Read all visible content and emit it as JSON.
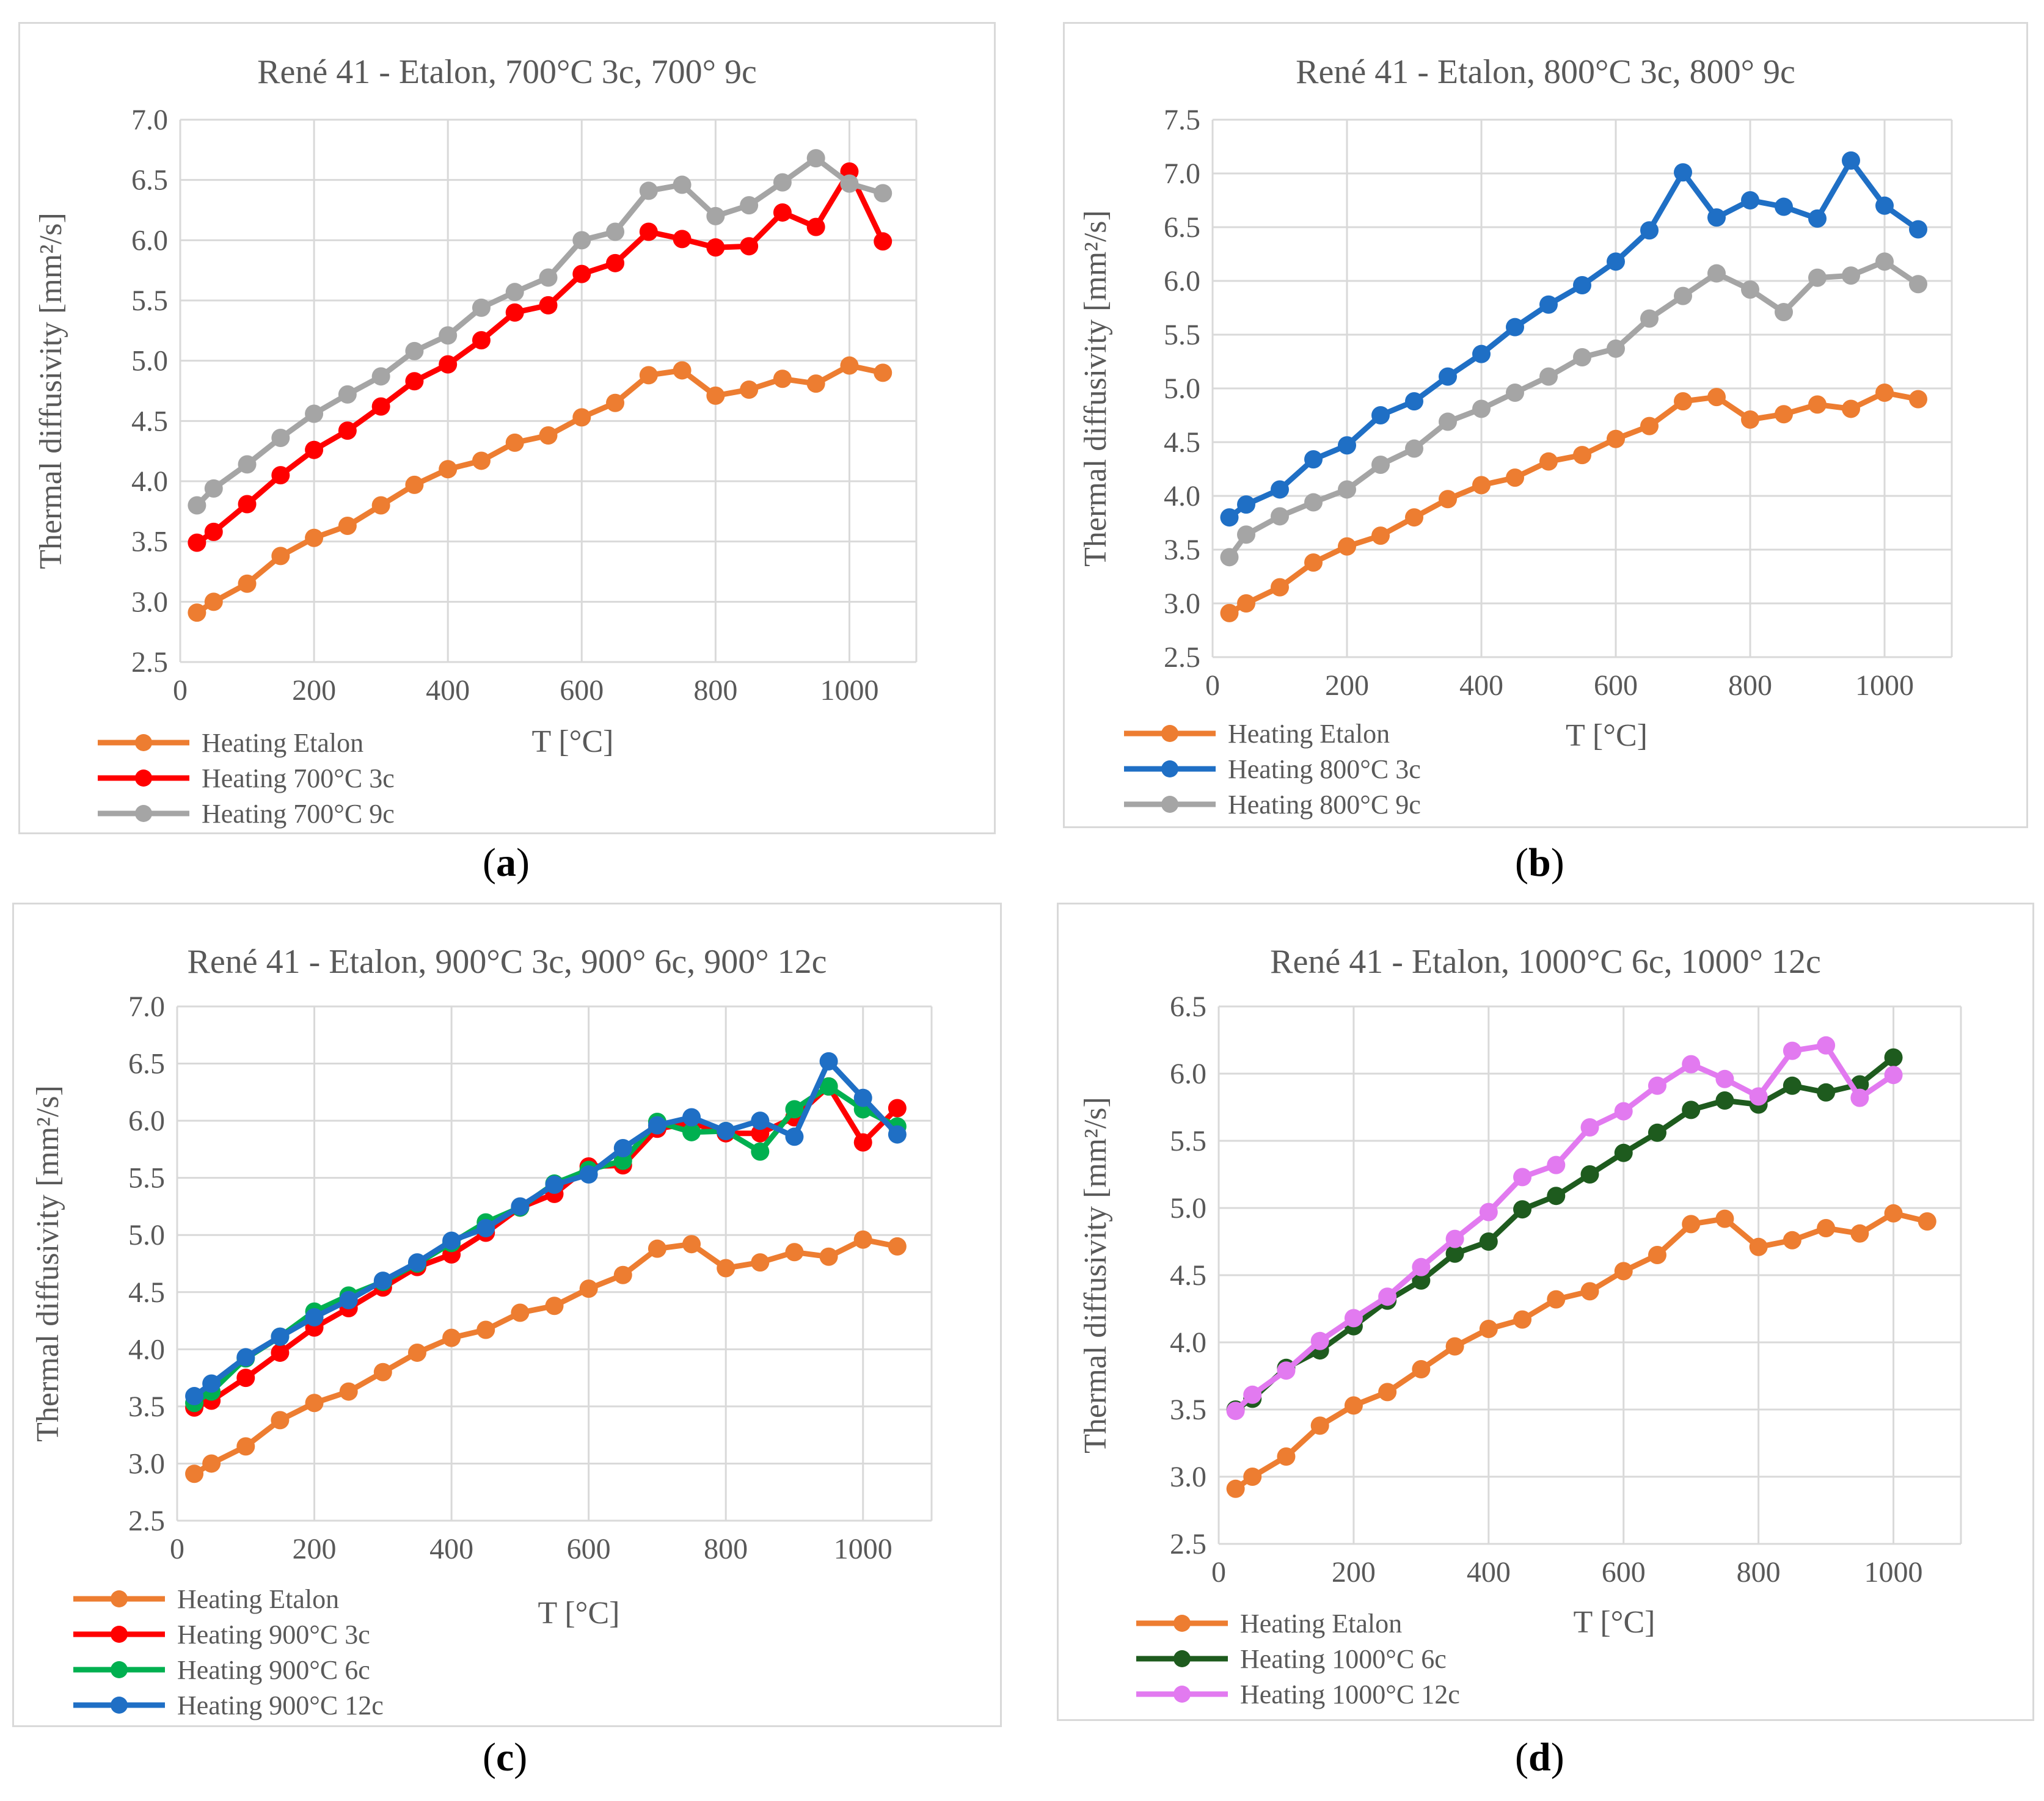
{
  "panels": [
    {
      "caption": "(a)",
      "caption_letter": "a",
      "chart_data": {
        "type": "line",
        "title": "René 41 - Etalon, 700°C 3c, 700° 9c",
        "xlabel": "T [°C]",
        "ylabel": "Thermal diffusivity  [mm²/s]",
        "xlim": [
          0,
          1100
        ],
        "ylim": [
          2.5,
          7.0
        ],
        "xticks": [
          0,
          200,
          400,
          600,
          800,
          1000
        ],
        "yticks": [
          "2.5",
          "3.0",
          "3.5",
          "4.0",
          "4.5",
          "5.0",
          "5.5",
          "6.0",
          "6.5",
          "7.0"
        ],
        "x": [
          25,
          50,
          100,
          150,
          200,
          250,
          300,
          350,
          400,
          450,
          500,
          550,
          600,
          650,
          700,
          750,
          800,
          850,
          900,
          950,
          1000,
          1050
        ],
        "series": [
          {
            "name": "Heating Etalon",
            "color": "#ED7D31",
            "values": [
              2.91,
              3.0,
              3.15,
              3.38,
              3.53,
              3.63,
              3.8,
              3.97,
              4.1,
              4.17,
              4.32,
              4.38,
              4.53,
              4.65,
              4.88,
              4.92,
              4.71,
              4.76,
              4.85,
              4.81,
              4.96,
              4.9
            ]
          },
          {
            "name": "Heating 700°C 3c",
            "color": "#FF0000",
            "values": [
              3.49,
              3.58,
              3.81,
              4.05,
              4.26,
              4.42,
              4.62,
              4.83,
              4.97,
              5.17,
              5.4,
              5.46,
              5.72,
              5.81,
              6.07,
              6.01,
              5.94,
              5.95,
              6.23,
              6.11,
              6.57,
              5.99
            ]
          },
          {
            "name": "Heating 700°C 9c",
            "color": "#A5A5A5",
            "values": [
              3.8,
              3.94,
              4.14,
              4.36,
              4.56,
              4.72,
              4.87,
              5.08,
              5.21,
              5.44,
              5.57,
              5.69,
              6.0,
              6.07,
              6.41,
              6.46,
              6.2,
              6.29,
              6.48,
              6.68,
              6.47,
              6.39
            ]
          }
        ]
      }
    },
    {
      "caption": "(b)",
      "caption_letter": "b",
      "chart_data": {
        "type": "line",
        "title": "René 41 - Etalon, 800°C 3c, 800° 9c",
        "xlabel": "T [°C]",
        "ylabel": "Thermal diffusivity  [mm²/s]",
        "xlim": [
          0,
          1100
        ],
        "ylim": [
          2.5,
          7.5
        ],
        "xticks": [
          0,
          200,
          400,
          600,
          800,
          1000
        ],
        "yticks": [
          "2.5",
          "3.0",
          "3.5",
          "4.0",
          "4.5",
          "5.0",
          "5.5",
          "6.0",
          "6.5",
          "7.0",
          "7.5"
        ],
        "x": [
          25,
          50,
          100,
          150,
          200,
          250,
          300,
          350,
          400,
          450,
          500,
          550,
          600,
          650,
          700,
          750,
          800,
          850,
          900,
          950,
          1000,
          1050
        ],
        "series": [
          {
            "name": "Heating Etalon",
            "color": "#ED7D31",
            "values": [
              2.91,
              3.0,
              3.15,
              3.38,
              3.53,
              3.63,
              3.8,
              3.97,
              4.1,
              4.17,
              4.32,
              4.38,
              4.53,
              4.65,
              4.88,
              4.92,
              4.71,
              4.76,
              4.85,
              4.81,
              4.96,
              4.9
            ]
          },
          {
            "name": "Heating 800°C 3c",
            "color": "#1F6FC5",
            "values": [
              3.8,
              3.92,
              4.06,
              4.34,
              4.47,
              4.75,
              4.88,
              5.11,
              5.32,
              5.57,
              5.78,
              5.96,
              6.18,
              6.47,
              7.01,
              6.59,
              6.75,
              6.69,
              6.58,
              7.12,
              6.7,
              6.48
            ]
          },
          {
            "name": "Heating 800°C 9c",
            "color": "#A5A5A5",
            "values": [
              3.43,
              3.64,
              3.81,
              3.94,
              4.06,
              4.29,
              4.44,
              4.69,
              4.81,
              4.96,
              5.11,
              5.29,
              5.37,
              5.65,
              5.86,
              6.07,
              5.92,
              5.71,
              6.03,
              6.05,
              6.18,
              5.97
            ]
          }
        ]
      }
    },
    {
      "caption": "(c)",
      "caption_letter": "c",
      "chart_data": {
        "type": "line",
        "title": "René 41 - Etalon, 900°C 3c, 900° 6c, 900° 12c",
        "xlabel": "T [°C]",
        "ylabel": "Thermal diffusivity  [mm²/s]",
        "xlim": [
          0,
          1100
        ],
        "ylim": [
          2.5,
          7.0
        ],
        "xticks": [
          0,
          200,
          400,
          600,
          800,
          1000
        ],
        "yticks": [
          "2.5",
          "3.0",
          "3.5",
          "4.0",
          "4.5",
          "5.0",
          "5.5",
          "6.0",
          "6.5",
          "7.0"
        ],
        "x": [
          25,
          50,
          100,
          150,
          200,
          250,
          300,
          350,
          400,
          450,
          500,
          550,
          600,
          650,
          700,
          750,
          800,
          850,
          900,
          950,
          1000,
          1050
        ],
        "series": [
          {
            "name": "Heating Etalon",
            "color": "#ED7D31",
            "values": [
              2.91,
              3.0,
              3.15,
              3.38,
              3.53,
              3.63,
              3.8,
              3.97,
              4.1,
              4.17,
              4.32,
              4.38,
              4.53,
              4.65,
              4.88,
              4.92,
              4.71,
              4.76,
              4.85,
              4.81,
              4.96,
              4.9
            ]
          },
          {
            "name": "Heating 900°C 3c",
            "color": "#FF0000",
            "values": [
              3.49,
              3.55,
              3.75,
              3.97,
              4.19,
              4.36,
              4.54,
              4.72,
              4.83,
              5.02,
              5.24,
              5.36,
              5.6,
              5.61,
              5.93,
              5.98,
              5.89,
              5.89,
              6.03,
              6.3,
              5.81,
              6.11
            ]
          },
          {
            "name": "Heating 900°C 6c",
            "color": "#00B050",
            "values": [
              3.53,
              3.63,
              3.92,
              4.11,
              4.33,
              4.47,
              4.59,
              4.75,
              4.93,
              5.11,
              5.24,
              5.45,
              5.57,
              5.65,
              5.99,
              5.9,
              5.91,
              5.73,
              6.1,
              6.3,
              6.1,
              5.95
            ]
          },
          {
            "name": "Heating 900°C 12c",
            "color": "#1F6FC5",
            "values": [
              3.59,
              3.7,
              3.93,
              4.11,
              4.28,
              4.43,
              4.6,
              4.76,
              4.95,
              5.06,
              5.25,
              5.44,
              5.53,
              5.76,
              5.96,
              6.03,
              5.91,
              6.0,
              5.86,
              6.52,
              6.2,
              5.88
            ]
          }
        ]
      }
    },
    {
      "caption": "(d)",
      "caption_letter": "d",
      "chart_data": {
        "type": "line",
        "title": "René 41 - Etalon, 1000°C 6c, 1000° 12c",
        "xlabel": "T [°C]",
        "ylabel": "Thermal diffusivity  [mm²/s]",
        "xlim": [
          0,
          1100
        ],
        "ylim": [
          2.5,
          6.5
        ],
        "xticks": [
          0,
          200,
          400,
          600,
          800,
          1000
        ],
        "yticks": [
          "2.5",
          "3.0",
          "3.5",
          "4.0",
          "4.5",
          "5.0",
          "5.5",
          "6.0",
          "6.5"
        ],
        "x": [
          25,
          50,
          100,
          150,
          200,
          250,
          300,
          350,
          400,
          450,
          500,
          550,
          600,
          650,
          700,
          750,
          800,
          850,
          900,
          950,
          1000,
          1050
        ],
        "series": [
          {
            "name": "Heating Etalon",
            "color": "#ED7D31",
            "values": [
              2.91,
              3.0,
              3.15,
              3.38,
              3.53,
              3.63,
              3.8,
              3.97,
              4.1,
              4.17,
              4.32,
              4.38,
              4.53,
              4.65,
              4.88,
              4.92,
              4.71,
              4.76,
              4.85,
              4.81,
              4.96,
              4.9
            ]
          },
          {
            "name": "Heating 1000°C 6c",
            "color": "#1E5B1E",
            "values": [
              3.5,
              3.58,
              3.81,
              3.94,
              4.12,
              4.31,
              4.46,
              4.66,
              4.75,
              4.99,
              5.09,
              5.25,
              5.41,
              5.56,
              5.73,
              5.8,
              5.77,
              5.91,
              5.86,
              5.92,
              6.12,
              null
            ]
          },
          {
            "name": "Heating 1000°C 12c",
            "color": "#E27AF0",
            "values": [
              3.49,
              3.61,
              3.79,
              4.01,
              4.18,
              4.34,
              4.56,
              4.77,
              4.97,
              5.23,
              5.32,
              5.6,
              5.72,
              5.91,
              6.07,
              5.96,
              5.83,
              6.17,
              6.21,
              5.82,
              5.99,
              null
            ]
          }
        ]
      }
    }
  ]
}
